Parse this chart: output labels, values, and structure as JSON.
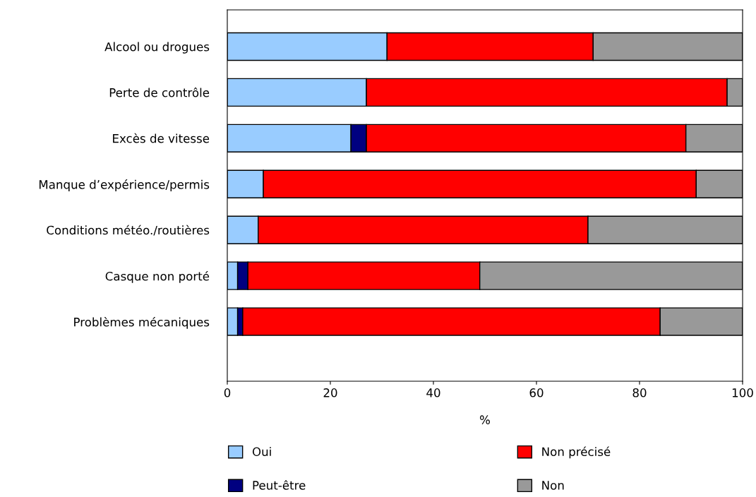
{
  "chart_data": {
    "type": "bar",
    "orientation": "horizontal",
    "stacked": true,
    "xlabel": "%",
    "categories": [
      "Alcool ou drogues",
      "Perte de contrôle",
      "Excès de vitesse",
      "Manque d’expérience/permis",
      "Conditions météo./routières",
      "Casque non porté",
      "Problèmes mécaniques"
    ],
    "series": [
      {
        "name": "Oui",
        "color": "#99ccff",
        "values": [
          31,
          27,
          24,
          7,
          6,
          2,
          2
        ]
      },
      {
        "name": "Peut-être",
        "color": "#000080",
        "values": [
          0,
          0,
          3,
          0,
          0,
          2,
          1
        ]
      },
      {
        "name": "Non précisé",
        "color": "#ff0000",
        "values": [
          40,
          70,
          62,
          84,
          64,
          45,
          81
        ]
      },
      {
        "name": "Non",
        "color": "#999999",
        "values": [
          29,
          3,
          11,
          9,
          30,
          51,
          16
        ]
      }
    ],
    "xlim": [
      0,
      100
    ],
    "xticks": [
      0,
      20,
      40,
      60,
      80,
      100
    ],
    "grid": false,
    "legend": "bottom"
  }
}
